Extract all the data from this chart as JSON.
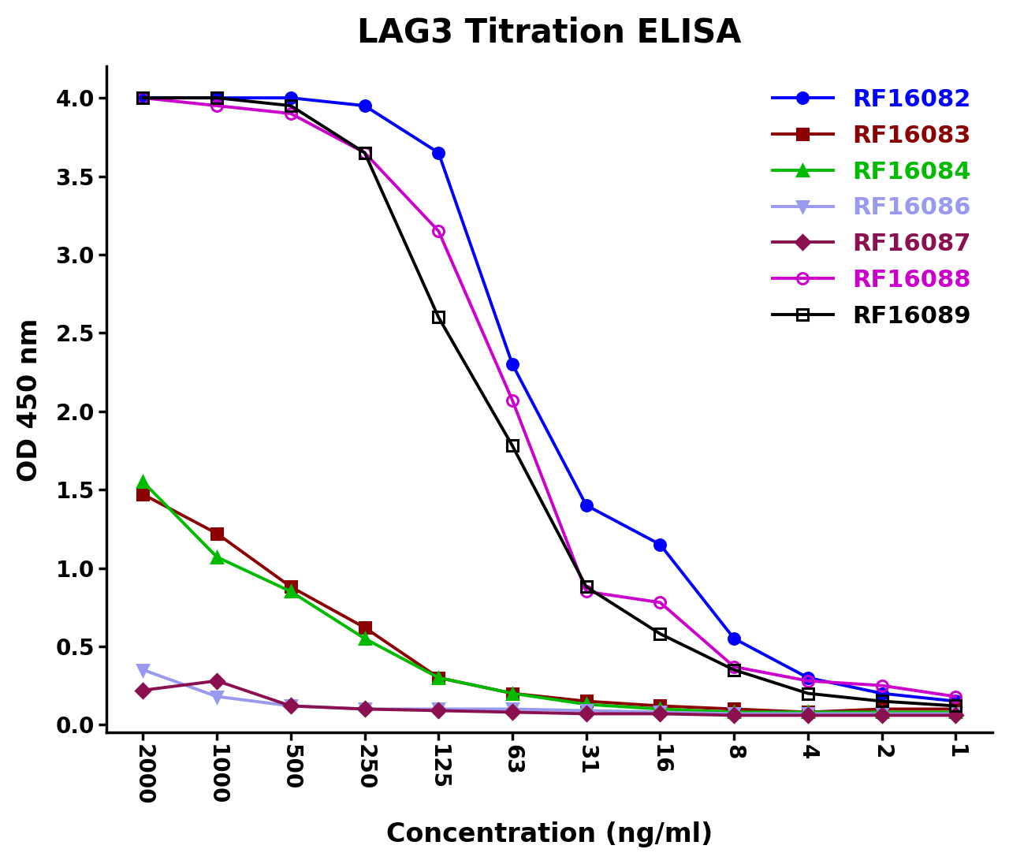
{
  "title": "LAG3 Titration ELISA",
  "xlabel": "Concentration (ng/ml)",
  "ylabel": "OD 450 nm",
  "x_labels": [
    "2000",
    "1000",
    "500",
    "250",
    "125",
    "63",
    "31",
    "16",
    "8",
    "4",
    "2",
    "1"
  ],
  "ylim": [
    -0.05,
    4.2
  ],
  "yticks": [
    0.0,
    0.5,
    1.0,
    1.5,
    2.0,
    2.5,
    3.0,
    3.5,
    4.0
  ],
  "series": [
    {
      "name": "RF16082",
      "color": "#0000FF",
      "marker": "o",
      "markersize": 10,
      "linewidth": 2.8,
      "fillstyle": "full",
      "values": [
        4.0,
        4.0,
        4.0,
        3.95,
        3.65,
        2.3,
        1.4,
        1.15,
        0.55,
        0.3,
        0.2,
        0.15
      ]
    },
    {
      "name": "RF16083",
      "color": "#8B0000",
      "marker": "s",
      "markersize": 10,
      "linewidth": 2.8,
      "fillstyle": "full",
      "values": [
        1.47,
        1.22,
        0.88,
        0.62,
        0.3,
        0.2,
        0.15,
        0.12,
        0.1,
        0.08,
        0.1,
        0.1
      ]
    },
    {
      "name": "RF16084",
      "color": "#00BB00",
      "marker": "^",
      "markersize": 10,
      "linewidth": 2.8,
      "fillstyle": "full",
      "values": [
        1.55,
        1.07,
        0.85,
        0.55,
        0.3,
        0.2,
        0.13,
        0.1,
        0.08,
        0.08,
        0.08,
        0.08
      ]
    },
    {
      "name": "RF16086",
      "color": "#9999EE",
      "marker": "v",
      "markersize": 10,
      "linewidth": 2.8,
      "fillstyle": "full",
      "values": [
        0.35,
        0.18,
        0.12,
        0.1,
        0.1,
        0.1,
        0.09,
        0.08,
        0.07,
        0.07,
        0.07,
        0.07
      ]
    },
    {
      "name": "RF16087",
      "color": "#8B1050",
      "marker": "D",
      "markersize": 9,
      "linewidth": 2.8,
      "fillstyle": "full",
      "values": [
        0.22,
        0.28,
        0.12,
        0.1,
        0.09,
        0.08,
        0.07,
        0.07,
        0.06,
        0.06,
        0.06,
        0.06
      ]
    },
    {
      "name": "RF16088",
      "color": "#CC00CC",
      "marker": "o",
      "markersize": 10,
      "linewidth": 2.8,
      "fillstyle": "none",
      "values": [
        4.0,
        3.95,
        3.9,
        3.65,
        3.15,
        2.07,
        0.85,
        0.78,
        0.37,
        0.28,
        0.25,
        0.18
      ]
    },
    {
      "name": "RF16089",
      "color": "#000000",
      "marker": "s",
      "markersize": 10,
      "linewidth": 2.8,
      "fillstyle": "none",
      "values": [
        4.0,
        4.0,
        3.95,
        3.65,
        2.6,
        1.78,
        0.88,
        0.58,
        0.35,
        0.2,
        0.15,
        0.12
      ]
    }
  ],
  "background_color": "#FFFFFF",
  "title_fontsize": 30,
  "label_fontsize": 24,
  "tick_fontsize": 20,
  "legend_fontsize": 22
}
